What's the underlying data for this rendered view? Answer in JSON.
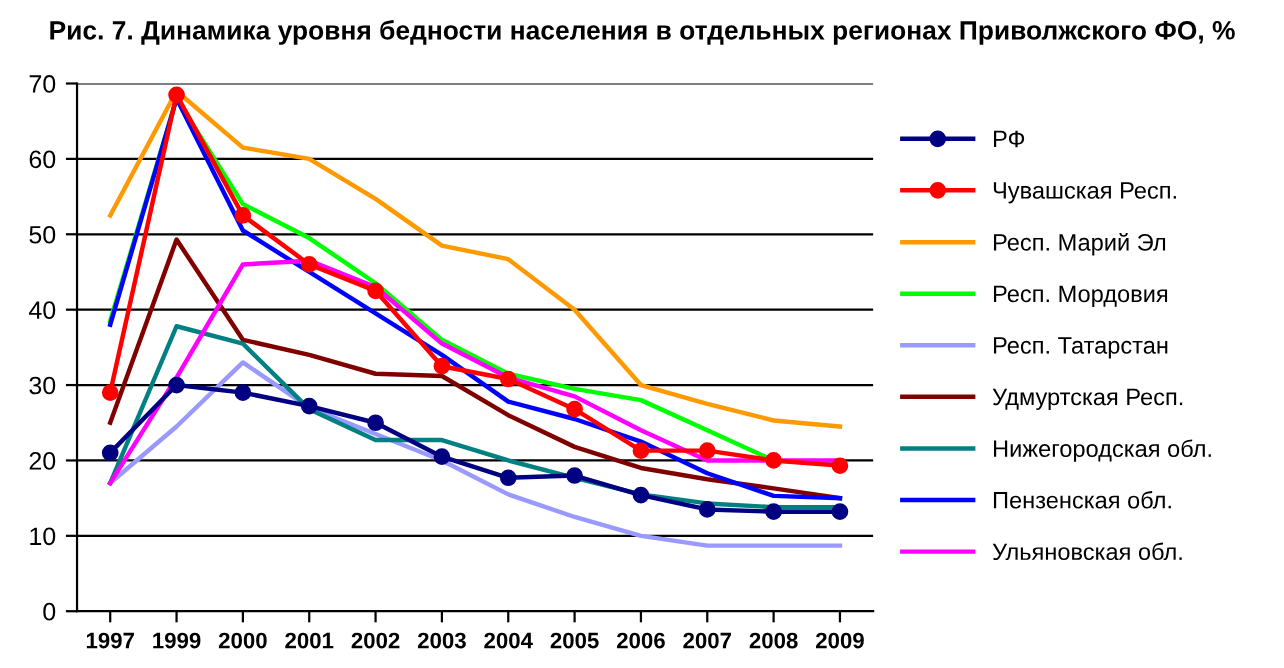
{
  "chart_data": {
    "type": "line",
    "title": "Рис. 7. Динамика уровня бедности населения в отдельных регионах Приволжского ФО, %",
    "categories": [
      "1997",
      "1999",
      "2000",
      "2001",
      "2002",
      "2003",
      "2004",
      "2005",
      "2006",
      "2007",
      "2008",
      "2009"
    ],
    "series": [
      {
        "name": "РФ",
        "color": "#000080",
        "marker": "circle",
        "values": [
          21,
          30,
          29,
          27.2,
          25,
          20.5,
          17.7,
          18,
          15.4,
          13.5,
          13.2,
          13.2
        ]
      },
      {
        "name": "Чувашская Респ.",
        "color": "#ff0000",
        "marker": "circle",
        "values": [
          29,
          68.5,
          52.5,
          46,
          42.5,
          32.5,
          30.8,
          26.8,
          21.3,
          21.3,
          20,
          19.3
        ]
      },
      {
        "name": "Респ. Марий Эл",
        "color": "#ff9900",
        "values": [
          52.5,
          69,
          61.5,
          60,
          54.7,
          48.5,
          46.7,
          40,
          30,
          27.5,
          25.3,
          24.5
        ]
      },
      {
        "name": "Респ. Мордовия",
        "color": "#00ff00",
        "values": [
          38.5,
          68,
          54,
          49.5,
          43.5,
          36,
          31.5,
          29.5,
          28,
          24,
          20,
          19.5
        ]
      },
      {
        "name": "Респ. Татарстан",
        "color": "#9999ff",
        "values": [
          17,
          24.5,
          33,
          27,
          23.5,
          20,
          15.5,
          12.5,
          10,
          8.7,
          8.7,
          8.7
        ]
      },
      {
        "name": "Удмуртская Респ.",
        "color": "#800000",
        "values": [
          25,
          49.3,
          36,
          34,
          31.5,
          31.2,
          26,
          21.8,
          19,
          17.5,
          16.3,
          15
        ]
      },
      {
        "name": "Нижегородская обл.",
        "color": "#008080",
        "values": [
          17,
          37.8,
          35.5,
          26.8,
          22.7,
          22.7,
          20,
          17.7,
          15.5,
          14.3,
          13.8,
          13.8
        ]
      },
      {
        "name": "Пензенская обл.",
        "color": "#0000ff",
        "values": [
          38,
          68,
          50.5,
          45,
          39.5,
          34,
          27.8,
          25.5,
          22.5,
          18.3,
          15.3,
          15
        ]
      },
      {
        "name": "Ульяновская обл.",
        "color": "#ff00ff",
        "values": [
          17,
          31,
          46,
          46.5,
          43,
          35.5,
          31,
          28.5,
          24,
          20,
          20,
          20
        ]
      }
    ],
    "ylim": [
      0,
      70
    ],
    "yticks": [
      0,
      10,
      20,
      30,
      40,
      50,
      60,
      70
    ],
    "grid": "y",
    "legend": "right"
  }
}
